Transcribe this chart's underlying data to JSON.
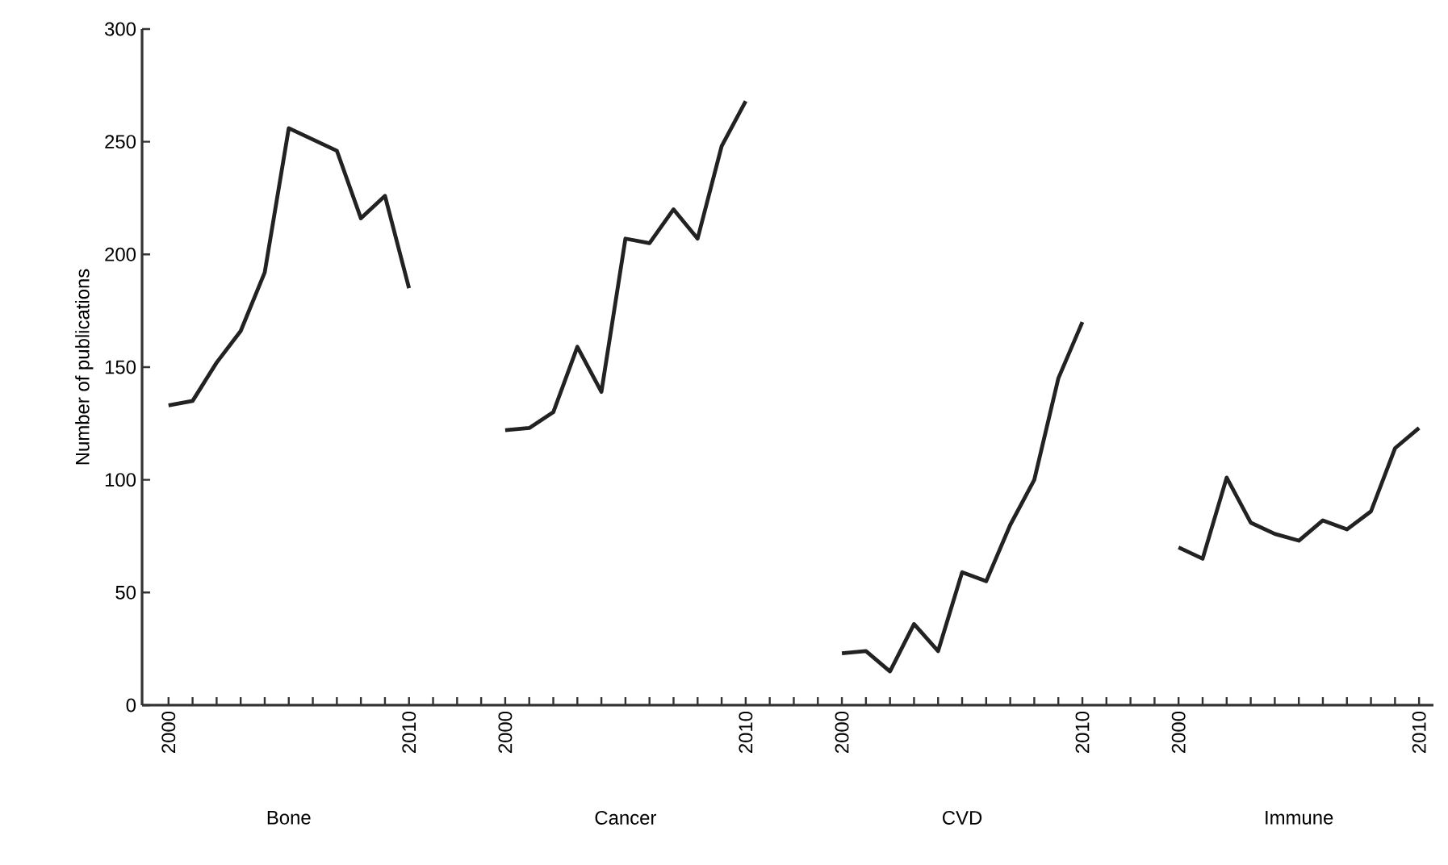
{
  "chart_data": {
    "type": "line",
    "ylabel": "Number of publications",
    "categories": [
      "2000",
      null,
      null,
      null,
      null,
      null,
      null,
      null,
      null,
      null,
      "2010",
      null,
      null,
      null,
      "2000",
      null,
      null,
      null,
      null,
      null,
      null,
      null,
      null,
      null,
      "2010",
      null,
      null,
      null,
      "2000",
      null,
      null,
      null,
      null,
      null,
      null,
      null,
      null,
      null,
      "2010",
      null,
      null,
      null,
      "2000",
      null,
      null,
      null,
      null,
      null,
      null,
      null,
      null,
      null,
      "2010"
    ],
    "series": [
      {
        "color": "#222222",
        "values": [
          133,
          135,
          152,
          166,
          192,
          256,
          251,
          246,
          216,
          226,
          185,
          null,
          null,
          null,
          122,
          123,
          130,
          159,
          139,
          207,
          205,
          220,
          207,
          248,
          268,
          null,
          null,
          null,
          23,
          24,
          15,
          36,
          24,
          59,
          55,
          80,
          100,
          145,
          170,
          null,
          null,
          null,
          70,
          65,
          101,
          81,
          76,
          73,
          82,
          78,
          86,
          114,
          123
        ]
      }
    ],
    "ylim": [
      0,
      300
    ],
    "yticks": [
      0,
      50,
      100,
      150,
      200,
      250,
      300
    ],
    "annotations": [
      "Bone",
      "Cancer",
      "CVD",
      "Immune"
    ],
    "grid": false,
    "marker": "none",
    "line_style": "solid"
  }
}
